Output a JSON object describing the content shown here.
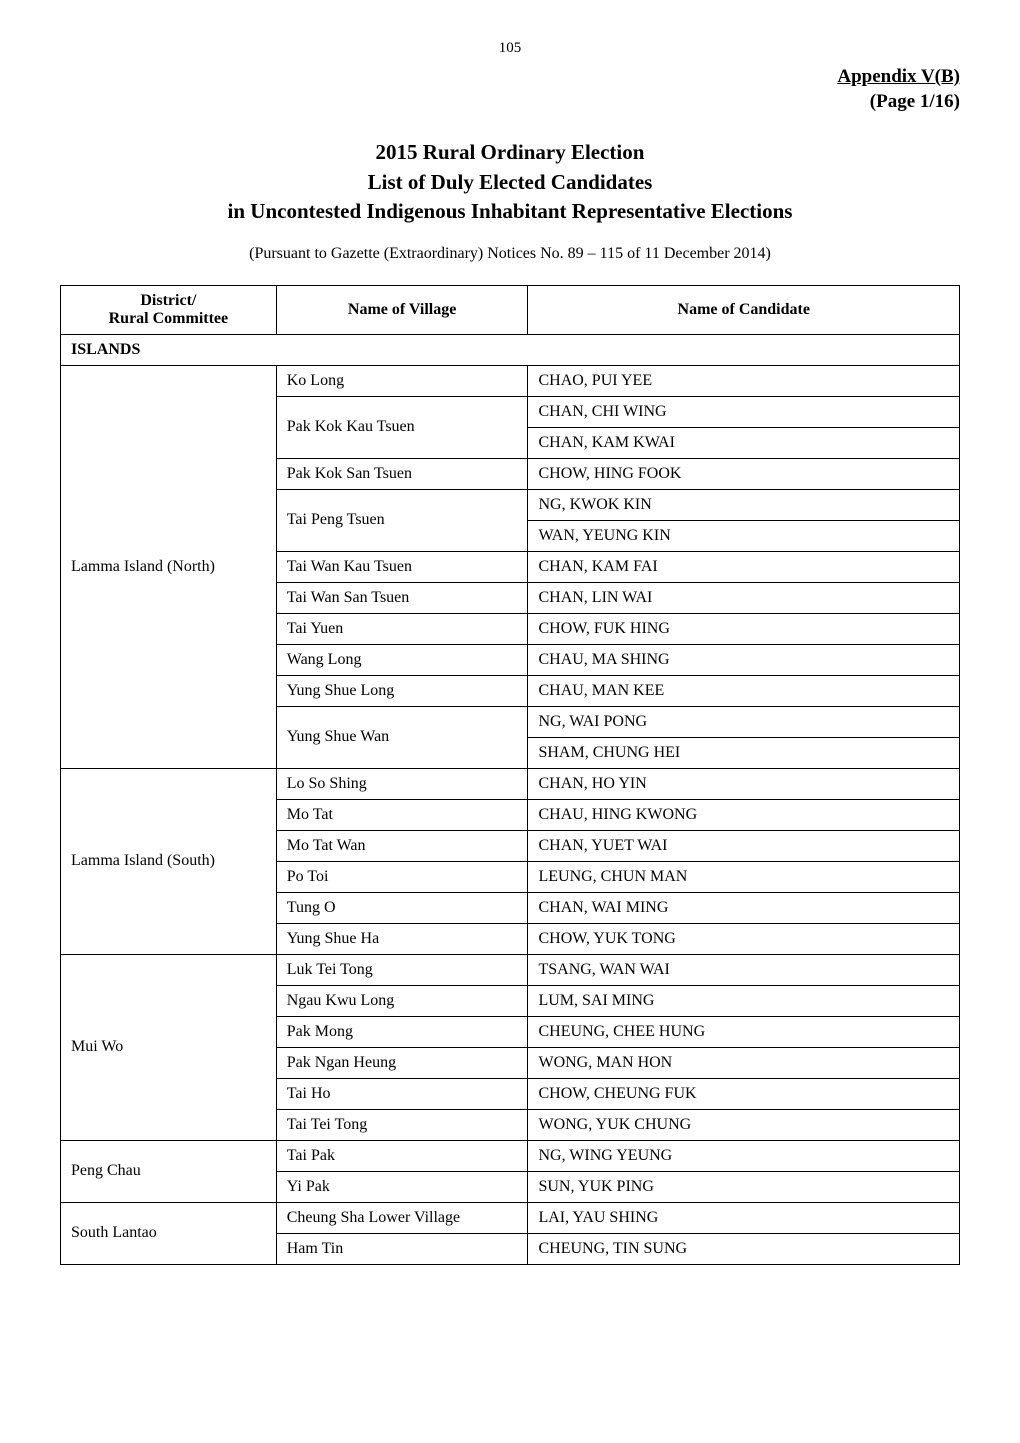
{
  "page_number": "105",
  "appendix_label": "Appendix  V(B)",
  "page_label": "(Page  1/16)",
  "title_line1": "2015 Rural Ordinary Election",
  "title_line2": "List of Duly Elected Candidates",
  "title_line3": "in Uncontested Indigenous Inhabitant Representative Elections",
  "gazette_note": "(Pursuant to Gazette (Extraordinary) Notices No. 89 – 115 of 11 December 2014)",
  "columns": {
    "district": "District/\nRural Committee",
    "village": "Name of Village",
    "candidate": "Name of Candidate"
  },
  "section_header": "ISLANDS",
  "groups": [
    {
      "district": "Lamma Island (North)",
      "rows": [
        {
          "village": "Ko Long",
          "candidate": "CHAO, PUI YEE",
          "vspan": 1
        },
        {
          "village": "Pak Kok Kau Tsuen",
          "candidate": "CHAN, CHI WING",
          "vspan": 2
        },
        {
          "village": "",
          "candidate": "CHAN, KAM KWAI",
          "vspan": 0
        },
        {
          "village": "Pak Kok San Tsuen",
          "candidate": "CHOW, HING FOOK",
          "vspan": 1
        },
        {
          "village": "Tai Peng Tsuen",
          "candidate": "NG, KWOK KIN",
          "vspan": 2
        },
        {
          "village": "",
          "candidate": "WAN, YEUNG KIN",
          "vspan": 0
        },
        {
          "village": "Tai Wan Kau Tsuen",
          "candidate": "CHAN, KAM FAI",
          "vspan": 1
        },
        {
          "village": "Tai Wan San Tsuen",
          "candidate": "CHAN, LIN WAI",
          "vspan": 1
        },
        {
          "village": "Tai Yuen",
          "candidate": "CHOW, FUK HING",
          "vspan": 1
        },
        {
          "village": "Wang Long",
          "candidate": "CHAU, MA SHING",
          "vspan": 1
        },
        {
          "village": "Yung Shue Long",
          "candidate": "CHAU, MAN KEE",
          "vspan": 1
        },
        {
          "village": "Yung Shue Wan",
          "candidate": "NG, WAI PONG",
          "vspan": 2
        },
        {
          "village": "",
          "candidate": "SHAM, CHUNG HEI",
          "vspan": 0
        }
      ]
    },
    {
      "district": "Lamma Island (South)",
      "rows": [
        {
          "village": "Lo So Shing",
          "candidate": "CHAN, HO YIN",
          "vspan": 1
        },
        {
          "village": "Mo Tat",
          "candidate": "CHAU, HING KWONG",
          "vspan": 1
        },
        {
          "village": "Mo Tat Wan",
          "candidate": "CHAN, YUET WAI",
          "vspan": 1
        },
        {
          "village": "Po Toi",
          "candidate": "LEUNG, CHUN MAN",
          "vspan": 1
        },
        {
          "village": "Tung O",
          "candidate": "CHAN, WAI MING",
          "vspan": 1
        },
        {
          "village": "Yung Shue Ha",
          "candidate": "CHOW, YUK TONG",
          "vspan": 1
        }
      ]
    },
    {
      "district": "Mui Wo",
      "rows": [
        {
          "village": "Luk Tei Tong",
          "candidate": "TSANG, WAN WAI",
          "vspan": 1
        },
        {
          "village": "Ngau Kwu Long",
          "candidate": "LUM, SAI MING",
          "vspan": 1
        },
        {
          "village": "Pak Mong",
          "candidate": "CHEUNG, CHEE HUNG",
          "vspan": 1
        },
        {
          "village": "Pak Ngan Heung",
          "candidate": "WONG, MAN HON",
          "vspan": 1
        },
        {
          "village": "Tai Ho",
          "candidate": "CHOW, CHEUNG FUK",
          "vspan": 1
        },
        {
          "village": "Tai Tei Tong",
          "candidate": "WONG, YUK CHUNG",
          "vspan": 1
        }
      ]
    },
    {
      "district": "Peng Chau",
      "rows": [
        {
          "village": "Tai Pak",
          "candidate": "NG, WING YEUNG",
          "vspan": 1
        },
        {
          "village": "Yi Pak",
          "candidate": "SUN, YUK PING",
          "vspan": 1
        }
      ]
    },
    {
      "district": "South Lantao",
      "rows": [
        {
          "village": "Cheung Sha Lower Village",
          "candidate": "LAI, YAU SHING",
          "vspan": 1
        },
        {
          "village": "Ham Tin",
          "candidate": "CHEUNG, TIN SUNG",
          "vspan": 1
        }
      ]
    }
  ]
}
